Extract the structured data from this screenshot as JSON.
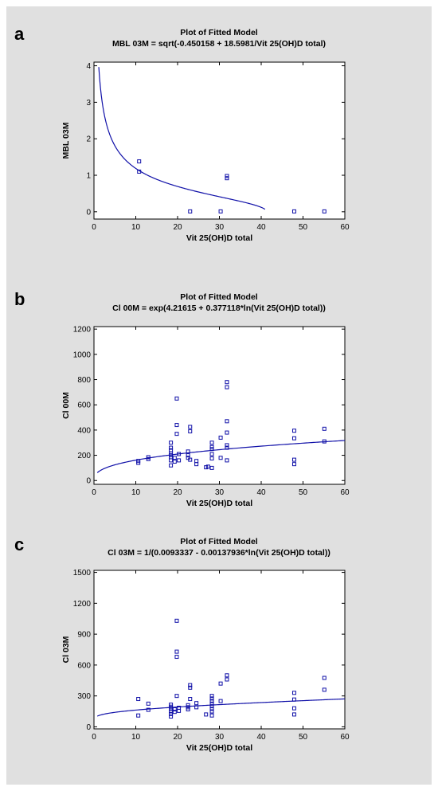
{
  "colors": {
    "series": "#1010a8",
    "panel_background": "#e0e0e0",
    "plot_background": "#ffffff"
  },
  "chart_data": [
    {
      "panel": "a",
      "type": "scatter",
      "title": "Plot of Fitted Model",
      "subtitle": "MBL 03M = sqrt(-0.450158 + 18.5981/Vit 25(OH)D total)",
      "xlabel": "Vit 25(OH)D total",
      "ylabel": "MBL 03M",
      "xlim": [
        0,
        60
      ],
      "ylim": [
        -0.2,
        4.1
      ],
      "xticks": [
        0,
        10,
        20,
        30,
        40,
        50,
        60
      ],
      "yticks": [
        0,
        1,
        2,
        3,
        4
      ],
      "grid": false,
      "points": [
        {
          "x": 10.8,
          "y": 1.38
        },
        {
          "x": 10.8,
          "y": 1.1
        },
        {
          "x": 23,
          "y": 0.01
        },
        {
          "x": 30.3,
          "y": 0.01
        },
        {
          "x": 31.8,
          "y": 0.98
        },
        {
          "x": 31.8,
          "y": 0.92
        },
        {
          "x": 47.9,
          "y": 0.01
        },
        {
          "x": 55.1,
          "y": 0.01
        }
      ],
      "fit": {
        "model": "sqrt_reciprocal",
        "a": -0.450158,
        "b": 18.5981,
        "x_range": [
          1.15,
          40.9
        ]
      }
    },
    {
      "panel": "b",
      "type": "scatter",
      "title": "Plot of Fitted Model",
      "subtitle": "Cl 00M = exp(4.21615 + 0.377118*ln(Vit 25(OH)D total))",
      "xlabel": "Vit 25(OH)D total",
      "ylabel": "Cl 00M",
      "xlim": [
        0,
        60
      ],
      "ylim": [
        -30,
        1220
      ],
      "xticks": [
        0,
        10,
        20,
        30,
        40,
        50,
        60
      ],
      "yticks": [
        0,
        200,
        400,
        600,
        800,
        1000,
        1200
      ],
      "grid": false,
      "points": [
        {
          "x": 10.6,
          "y": 140
        },
        {
          "x": 10.6,
          "y": 155
        },
        {
          "x": 13,
          "y": 170
        },
        {
          "x": 13,
          "y": 185
        },
        {
          "x": 18.4,
          "y": 120
        },
        {
          "x": 18.4,
          "y": 160
        },
        {
          "x": 18.4,
          "y": 185
        },
        {
          "x": 18.4,
          "y": 200
        },
        {
          "x": 18.4,
          "y": 215
        },
        {
          "x": 18.4,
          "y": 240
        },
        {
          "x": 18.4,
          "y": 260
        },
        {
          "x": 18.4,
          "y": 300
        },
        {
          "x": 19.3,
          "y": 150
        },
        {
          "x": 19.3,
          "y": 180
        },
        {
          "x": 19.8,
          "y": 370
        },
        {
          "x": 19.8,
          "y": 440
        },
        {
          "x": 19.8,
          "y": 650
        },
        {
          "x": 20.3,
          "y": 160
        },
        {
          "x": 20.3,
          "y": 210
        },
        {
          "x": 22.5,
          "y": 180
        },
        {
          "x": 22.5,
          "y": 200
        },
        {
          "x": 22.5,
          "y": 230
        },
        {
          "x": 23,
          "y": 165
        },
        {
          "x": 23,
          "y": 390
        },
        {
          "x": 23,
          "y": 425
        },
        {
          "x": 24.5,
          "y": 130
        },
        {
          "x": 24.5,
          "y": 155
        },
        {
          "x": 26.8,
          "y": 105
        },
        {
          "x": 27.3,
          "y": 110
        },
        {
          "x": 28.2,
          "y": 100
        },
        {
          "x": 28.2,
          "y": 175
        },
        {
          "x": 28.2,
          "y": 210
        },
        {
          "x": 28.2,
          "y": 250
        },
        {
          "x": 28.2,
          "y": 265
        },
        {
          "x": 28.2,
          "y": 300
        },
        {
          "x": 30.3,
          "y": 180
        },
        {
          "x": 30.3,
          "y": 340
        },
        {
          "x": 31.8,
          "y": 160
        },
        {
          "x": 31.8,
          "y": 260
        },
        {
          "x": 31.8,
          "y": 280
        },
        {
          "x": 31.8,
          "y": 380
        },
        {
          "x": 31.8,
          "y": 470
        },
        {
          "x": 31.8,
          "y": 740
        },
        {
          "x": 31.8,
          "y": 780
        },
        {
          "x": 47.9,
          "y": 130
        },
        {
          "x": 47.9,
          "y": 165
        },
        {
          "x": 47.9,
          "y": 335
        },
        {
          "x": 47.9,
          "y": 395
        },
        {
          "x": 55.1,
          "y": 310
        },
        {
          "x": 55.1,
          "y": 410
        }
      ],
      "fit": {
        "model": "power",
        "a": 4.21615,
        "b": 0.377118,
        "x_range": [
          0.8,
          60
        ]
      }
    },
    {
      "panel": "c",
      "type": "scatter",
      "title": "Plot of Fitted Model",
      "subtitle": "Cl 03M = 1/(0.0093337 - 0.00137936*ln(Vit 25(OH)D total))",
      "xlabel": "Vit 25(OH)D total",
      "ylabel": "Cl 03M",
      "xlim": [
        0,
        60
      ],
      "ylim": [
        -20,
        1520
      ],
      "xticks": [
        0,
        10,
        20,
        30,
        40,
        50,
        60
      ],
      "yticks": [
        0,
        300,
        600,
        900,
        1200,
        1500
      ],
      "grid": false,
      "points": [
        {
          "x": 10.6,
          "y": 110
        },
        {
          "x": 10.6,
          "y": 270
        },
        {
          "x": 13,
          "y": 165
        },
        {
          "x": 13,
          "y": 225
        },
        {
          "x": 18.4,
          "y": 100
        },
        {
          "x": 18.4,
          "y": 125
        },
        {
          "x": 18.4,
          "y": 150
        },
        {
          "x": 18.4,
          "y": 175
        },
        {
          "x": 18.4,
          "y": 195
        },
        {
          "x": 18.4,
          "y": 215
        },
        {
          "x": 19.3,
          "y": 145
        },
        {
          "x": 19.3,
          "y": 170
        },
        {
          "x": 19.8,
          "y": 300
        },
        {
          "x": 19.8,
          "y": 680
        },
        {
          "x": 19.8,
          "y": 730
        },
        {
          "x": 19.8,
          "y": 1030
        },
        {
          "x": 20.3,
          "y": 155
        },
        {
          "x": 20.3,
          "y": 185
        },
        {
          "x": 22.5,
          "y": 170
        },
        {
          "x": 22.5,
          "y": 190
        },
        {
          "x": 22.5,
          "y": 210
        },
        {
          "x": 23,
          "y": 270
        },
        {
          "x": 23,
          "y": 380
        },
        {
          "x": 23,
          "y": 405
        },
        {
          "x": 24.5,
          "y": 190
        },
        {
          "x": 24.5,
          "y": 230
        },
        {
          "x": 26.8,
          "y": 120
        },
        {
          "x": 28.2,
          "y": 110
        },
        {
          "x": 28.2,
          "y": 150
        },
        {
          "x": 28.2,
          "y": 175
        },
        {
          "x": 28.2,
          "y": 200
        },
        {
          "x": 28.2,
          "y": 225
        },
        {
          "x": 28.2,
          "y": 250
        },
        {
          "x": 28.2,
          "y": 275
        },
        {
          "x": 28.2,
          "y": 300
        },
        {
          "x": 30.3,
          "y": 250
        },
        {
          "x": 30.3,
          "y": 420
        },
        {
          "x": 31.8,
          "y": 460
        },
        {
          "x": 31.8,
          "y": 500
        },
        {
          "x": 47.9,
          "y": 120
        },
        {
          "x": 47.9,
          "y": 180
        },
        {
          "x": 47.9,
          "y": 265
        },
        {
          "x": 47.9,
          "y": 330
        },
        {
          "x": 55.1,
          "y": 360
        },
        {
          "x": 55.1,
          "y": 475
        }
      ],
      "fit": {
        "model": "reciprocal_log",
        "a": 0.0093337,
        "b": -0.00137936,
        "x_range": [
          0.8,
          60
        ]
      }
    }
  ]
}
